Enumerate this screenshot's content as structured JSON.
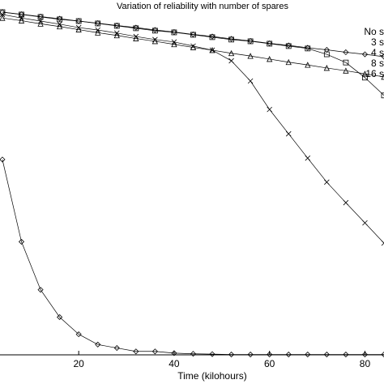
{
  "chart_data": {
    "type": "line",
    "title": "Variation of reliability with number of spares",
    "x_label": "Time (kilohours)",
    "x": [
      4,
      8,
      12,
      16,
      20,
      24,
      28,
      32,
      36,
      40,
      44,
      48,
      52,
      56,
      60,
      64,
      68,
      72,
      76,
      80,
      84
    ],
    "series": [
      {
        "name": "No s",
        "color": "#000000",
        "marker": "diamond",
        "values": [
          0.57,
          0.33,
          0.19,
          0.11,
          0.06,
          0.03,
          0.02,
          0.01,
          0.01,
          0.005,
          0.003,
          0.002,
          0.001,
          0.001,
          0.001,
          0.001,
          0.001,
          0.001,
          0.001,
          0.001,
          0.001
        ]
      },
      {
        "name": "3 s",
        "color": "#000000",
        "marker": "cross",
        "values": [
          0.993,
          0.983,
          0.974,
          0.965,
          0.955,
          0.948,
          0.939,
          0.929,
          0.92,
          0.913,
          0.901,
          0.889,
          0.858,
          0.799,
          0.716,
          0.645,
          0.574,
          0.504,
          0.444,
          0.385,
          0.326
        ]
      },
      {
        "name": "4 s",
        "color": "#000000",
        "marker": "square",
        "values": [
          1.0,
          0.993,
          0.986,
          0.979,
          0.974,
          0.967,
          0.96,
          0.953,
          0.946,
          0.941,
          0.934,
          0.927,
          0.92,
          0.915,
          0.908,
          0.901,
          0.894,
          0.877,
          0.853,
          0.809,
          0.757
        ]
      },
      {
        "name": "8 s",
        "color": "#000000",
        "marker": "triangle",
        "values": [
          0.983,
          0.975,
          0.966,
          0.958,
          0.949,
          0.94,
          0.932,
          0.923,
          0.915,
          0.906,
          0.897,
          0.889,
          0.88,
          0.872,
          0.863,
          0.854,
          0.846,
          0.837,
          0.829,
          0.82,
          0.811
        ]
      },
      {
        "name": "16 s",
        "color": "#000000",
        "marker": "diamond",
        "values": [
          1.0,
          0.994,
          0.987,
          0.981,
          0.974,
          0.968,
          0.961,
          0.955,
          0.948,
          0.942,
          0.935,
          0.929,
          0.922,
          0.916,
          0.909,
          0.903,
          0.896,
          0.89,
          0.883,
          0.877,
          0.87
        ]
      }
    ],
    "xlim": [
      3.5,
      84
    ],
    "xticks": [
      20,
      40,
      60,
      80
    ],
    "ylim": [
      0,
      1
    ]
  }
}
